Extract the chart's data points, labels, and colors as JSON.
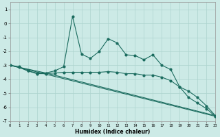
{
  "bg_color": "#cceae6",
  "grid_color": "#add4cf",
  "line_color": "#1a6b5e",
  "xlim": [
    0,
    23
  ],
  "ylim": [
    -7,
    1.5
  ],
  "yticks": [
    1,
    0,
    -1,
    -2,
    -3,
    -4,
    -5,
    -6,
    -7
  ],
  "xticks": [
    0,
    1,
    2,
    3,
    4,
    5,
    6,
    7,
    8,
    9,
    10,
    11,
    12,
    13,
    14,
    15,
    16,
    17,
    18,
    19,
    20,
    21,
    22,
    23
  ],
  "xlabel": "Humidex (Indice chaleur)",
  "line1_x": [
    0,
    1,
    2,
    3,
    4,
    5,
    6,
    7,
    8,
    9,
    10,
    11,
    12,
    13,
    14,
    15,
    16,
    17,
    18,
    19,
    20,
    21,
    22,
    23
  ],
  "line1_y": [
    -3.0,
    -3.15,
    -3.4,
    -3.55,
    -3.55,
    -3.4,
    -3.1,
    0.5,
    -2.2,
    -2.5,
    -2.0,
    -1.1,
    -1.4,
    -2.25,
    -2.3,
    -2.6,
    -2.25,
    -3.0,
    -3.3,
    -4.55,
    -5.3,
    -5.7,
    -6.1,
    -6.65
  ],
  "line2_x": [
    0,
    1,
    2,
    3,
    4,
    5,
    6,
    7,
    8,
    9,
    10,
    11,
    12,
    13,
    14,
    15,
    16,
    17,
    18,
    19,
    20,
    21,
    22,
    23
  ],
  "line2_y": [
    -3.0,
    -3.1,
    -3.4,
    -3.6,
    -3.6,
    -3.55,
    -3.5,
    -3.5,
    -3.5,
    -3.5,
    -3.5,
    -3.45,
    -3.5,
    -3.6,
    -3.6,
    -3.7,
    -3.7,
    -3.85,
    -4.1,
    -4.55,
    -4.85,
    -5.3,
    -5.9,
    -6.6
  ],
  "line3_x": [
    0,
    4,
    23
  ],
  "line3_y": [
    -3.0,
    -3.55,
    -6.6
  ],
  "line4_x": [
    0,
    23
  ],
  "line4_y": [
    -3.0,
    -6.65
  ]
}
